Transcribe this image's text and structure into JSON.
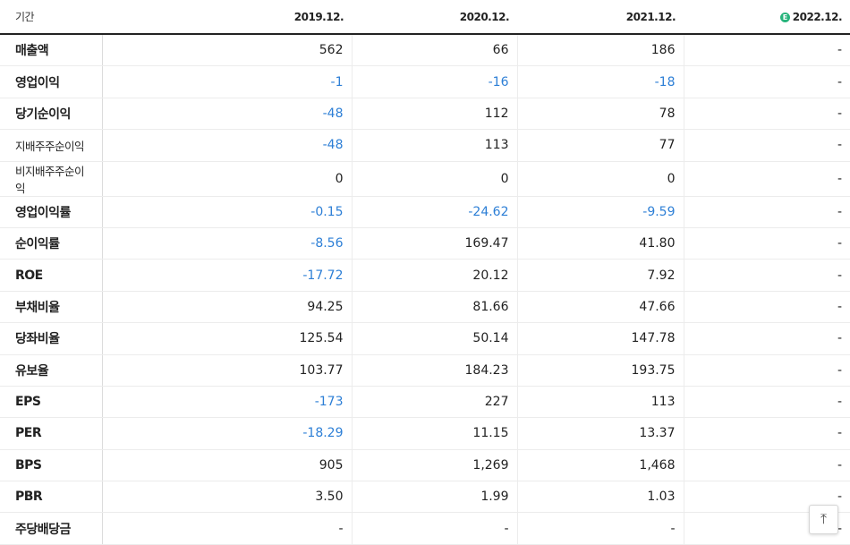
{
  "header": {
    "period_label": "기간",
    "years": [
      "2019.12.",
      "2020.12.",
      "2021.12.",
      "2022.12."
    ],
    "estimate_badge": "E"
  },
  "rows": [
    {
      "label": "매출액",
      "values": [
        "562",
        "66",
        "186",
        "-"
      ]
    },
    {
      "label": "영업이익",
      "values": [
        "-1",
        "-16",
        "-18",
        "-"
      ]
    },
    {
      "label": "당기순이익",
      "values": [
        "-48",
        "112",
        "78",
        "-"
      ]
    },
    {
      "label": "지배주주순이익",
      "values": [
        "-48",
        "113",
        "77",
        "-"
      ]
    },
    {
      "label": "비지배주주순이익",
      "values": [
        "0",
        "0",
        "0",
        "-"
      ]
    },
    {
      "label": "영업이익률",
      "values": [
        "-0.15",
        "-24.62",
        "-9.59",
        "-"
      ]
    },
    {
      "label": "순이익률",
      "values": [
        "-8.56",
        "169.47",
        "41.80",
        "-"
      ]
    },
    {
      "label": "ROE",
      "values": [
        "-17.72",
        "20.12",
        "7.92",
        "-"
      ]
    },
    {
      "label": "부채비율",
      "values": [
        "94.25",
        "81.66",
        "47.66",
        "-"
      ]
    },
    {
      "label": "당좌비율",
      "values": [
        "125.54",
        "50.14",
        "147.78",
        "-"
      ]
    },
    {
      "label": "유보율",
      "values": [
        "103.77",
        "184.23",
        "193.75",
        "-"
      ]
    },
    {
      "label": "EPS",
      "values": [
        "-173",
        "227",
        "113",
        "-"
      ]
    },
    {
      "label": "PER",
      "values": [
        "-18.29",
        "11.15",
        "13.37",
        "-"
      ]
    },
    {
      "label": "BPS",
      "values": [
        "905",
        "1,269",
        "1,468",
        "-"
      ]
    },
    {
      "label": "PBR",
      "values": [
        "3.50",
        "1.99",
        "1.03",
        "-"
      ]
    },
    {
      "label": "주당배당금",
      "values": [
        "-",
        "-",
        "-",
        "-"
      ]
    }
  ],
  "colors": {
    "negative": "#2d7fd6",
    "estimate_badge": "#28b47c"
  },
  "top_button": {
    "icon": "arrow-up-to-top-icon",
    "glyph": "⤒"
  }
}
